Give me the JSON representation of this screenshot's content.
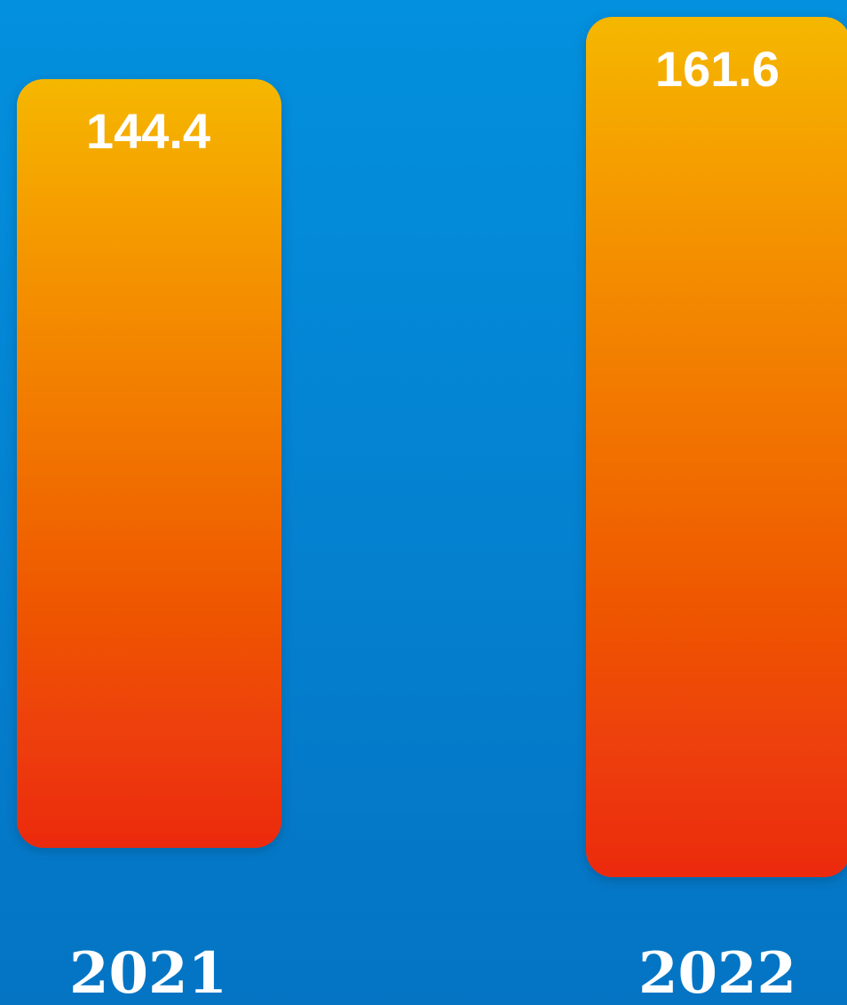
{
  "chart_data": {
    "type": "bar",
    "categories": [
      "2021",
      "2022"
    ],
    "values": [
      144.4,
      161.6
    ],
    "value_labels": [
      "144.4",
      "161.6"
    ],
    "title": "",
    "xlabel": "",
    "ylabel": "",
    "ylim": [
      0,
      161.6
    ],
    "grid": false,
    "legend": "none",
    "colors": {
      "background_top": "#0390de",
      "background_bottom": "#0474c3",
      "bar_top": "#f5b700",
      "bar_bottom": "#ec2a08",
      "label": "#ffffff"
    }
  }
}
